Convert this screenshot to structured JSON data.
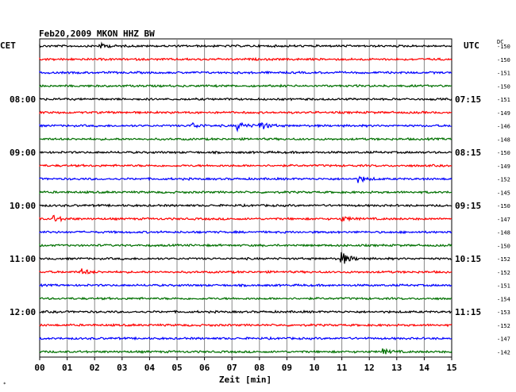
{
  "chart_data": {
    "type": "line",
    "title": "Feb20,2009   MKON HHZ BW",
    "xlabel": "Zeit [min]",
    "left_header": "CET",
    "right_header": "UTC",
    "dc_header": "DC",
    "x_ticks": [
      "00",
      "01",
      "02",
      "03",
      "04",
      "05",
      "06",
      "07",
      "08",
      "09",
      "10",
      "11",
      "12",
      "13",
      "14",
      "15"
    ],
    "xlim": [
      0,
      15
    ],
    "cet_labels": [
      {
        "row": 4,
        "text": "08:00"
      },
      {
        "row": 8,
        "text": "09:00"
      },
      {
        "row": 12,
        "text": "10:00"
      },
      {
        "row": 16,
        "text": "11:00"
      },
      {
        "row": 20,
        "text": "12:00"
      }
    ],
    "utc_labels": [
      {
        "row": 4,
        "text": "07:15"
      },
      {
        "row": 8,
        "text": "08:15"
      },
      {
        "row": 12,
        "text": "09:15"
      },
      {
        "row": 16,
        "text": "10:15"
      },
      {
        "row": 20,
        "text": "11:15"
      }
    ],
    "dc_values": [
      "-150",
      "-150",
      "-151",
      "-150",
      "-151",
      "-149",
      "-146",
      "-148",
      "-150",
      "-149",
      "-152",
      "-145",
      "-150",
      "-147",
      "-148",
      "-150",
      "-152",
      "-152",
      "-151",
      "-154",
      "-153",
      "-152",
      "-147",
      "-142"
    ],
    "trace_colors": [
      "#000000",
      "#ff0000",
      "#0000ff",
      "#007000"
    ],
    "events": [
      {
        "row": 0,
        "minute": 2.2,
        "amp": 3
      },
      {
        "row": 6,
        "minute": 5.5,
        "amp": 4
      },
      {
        "row": 6,
        "minute": 7.2,
        "amp": 5
      },
      {
        "row": 6,
        "minute": 8.0,
        "amp": 6
      },
      {
        "row": 10,
        "minute": 11.6,
        "amp": 4
      },
      {
        "row": 13,
        "minute": 0.5,
        "amp": 4
      },
      {
        "row": 13,
        "minute": 11.0,
        "amp": 3
      },
      {
        "row": 16,
        "minute": 11.0,
        "amp": 8
      },
      {
        "row": 17,
        "minute": 1.5,
        "amp": 4
      },
      {
        "row": 23,
        "minute": 12.5,
        "amp": 3
      }
    ],
    "grid": true
  }
}
